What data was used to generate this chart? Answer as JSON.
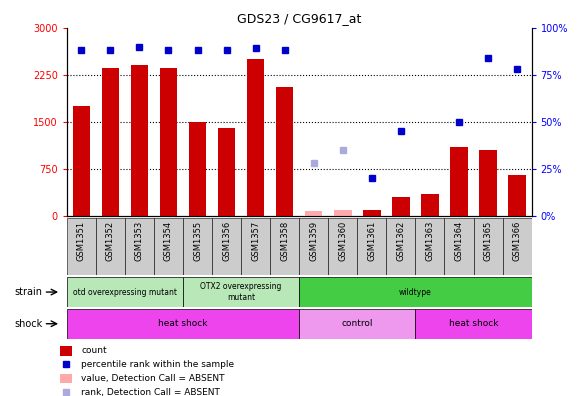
{
  "title": "GDS23 / CG9617_at",
  "samples": [
    "GSM1351",
    "GSM1352",
    "GSM1353",
    "GSM1354",
    "GSM1355",
    "GSM1356",
    "GSM1357",
    "GSM1358",
    "GSM1359",
    "GSM1360",
    "GSM1361",
    "GSM1362",
    "GSM1363",
    "GSM1364",
    "GSM1365",
    "GSM1366"
  ],
  "counts": [
    1750,
    2350,
    2400,
    2350,
    1500,
    1400,
    2500,
    2050,
    0,
    0,
    100,
    300,
    350,
    1100,
    1050,
    650
  ],
  "counts_absent": [
    false,
    false,
    false,
    false,
    false,
    false,
    false,
    false,
    true,
    true,
    false,
    false,
    false,
    false,
    false,
    false
  ],
  "absent_count_values": [
    0,
    0,
    0,
    0,
    0,
    0,
    0,
    0,
    80,
    100,
    0,
    0,
    0,
    0,
    0,
    0
  ],
  "percentile": [
    88,
    88,
    90,
    88,
    88,
    88,
    89,
    88,
    0,
    0,
    20,
    45,
    0,
    50,
    84,
    78
  ],
  "percentile_absent": [
    false,
    false,
    false,
    false,
    false,
    false,
    false,
    false,
    true,
    true,
    false,
    false,
    false,
    false,
    false,
    false
  ],
  "absent_percentile_values": [
    0,
    0,
    0,
    0,
    0,
    0,
    0,
    0,
    28,
    35,
    0,
    0,
    0,
    0,
    0,
    0
  ],
  "strain_groups": [
    {
      "label": "otd overexpressing mutant",
      "start": 0,
      "end": 4,
      "color": "#b8e8b8"
    },
    {
      "label": "OTX2 overexpressing\nmutant",
      "start": 4,
      "end": 8,
      "color": "#b8e8b8"
    },
    {
      "label": "wildtype",
      "start": 8,
      "end": 16,
      "color": "#44cc44"
    }
  ],
  "shock_groups": [
    {
      "label": "heat shock",
      "start": 0,
      "end": 8,
      "color": "#ee44ee"
    },
    {
      "label": "control",
      "start": 8,
      "end": 12,
      "color": "#ee99ee"
    },
    {
      "label": "heat shock",
      "start": 12,
      "end": 16,
      "color": "#ee44ee"
    }
  ],
  "ylim_left": [
    0,
    3000
  ],
  "ylim_right": [
    0,
    100
  ],
  "yticks_left": [
    0,
    750,
    1500,
    2250,
    3000
  ],
  "yticks_right": [
    0,
    25,
    50,
    75,
    100
  ],
  "bar_color": "#cc0000",
  "bar_absent_color": "#ffaaaa",
  "dot_color": "#0000cc",
  "dot_absent_color": "#aaaadd",
  "bg_color": "#ffffff",
  "plot_bg": "#ffffff",
  "tick_bg": "#cccccc",
  "grid_color": "#000000"
}
